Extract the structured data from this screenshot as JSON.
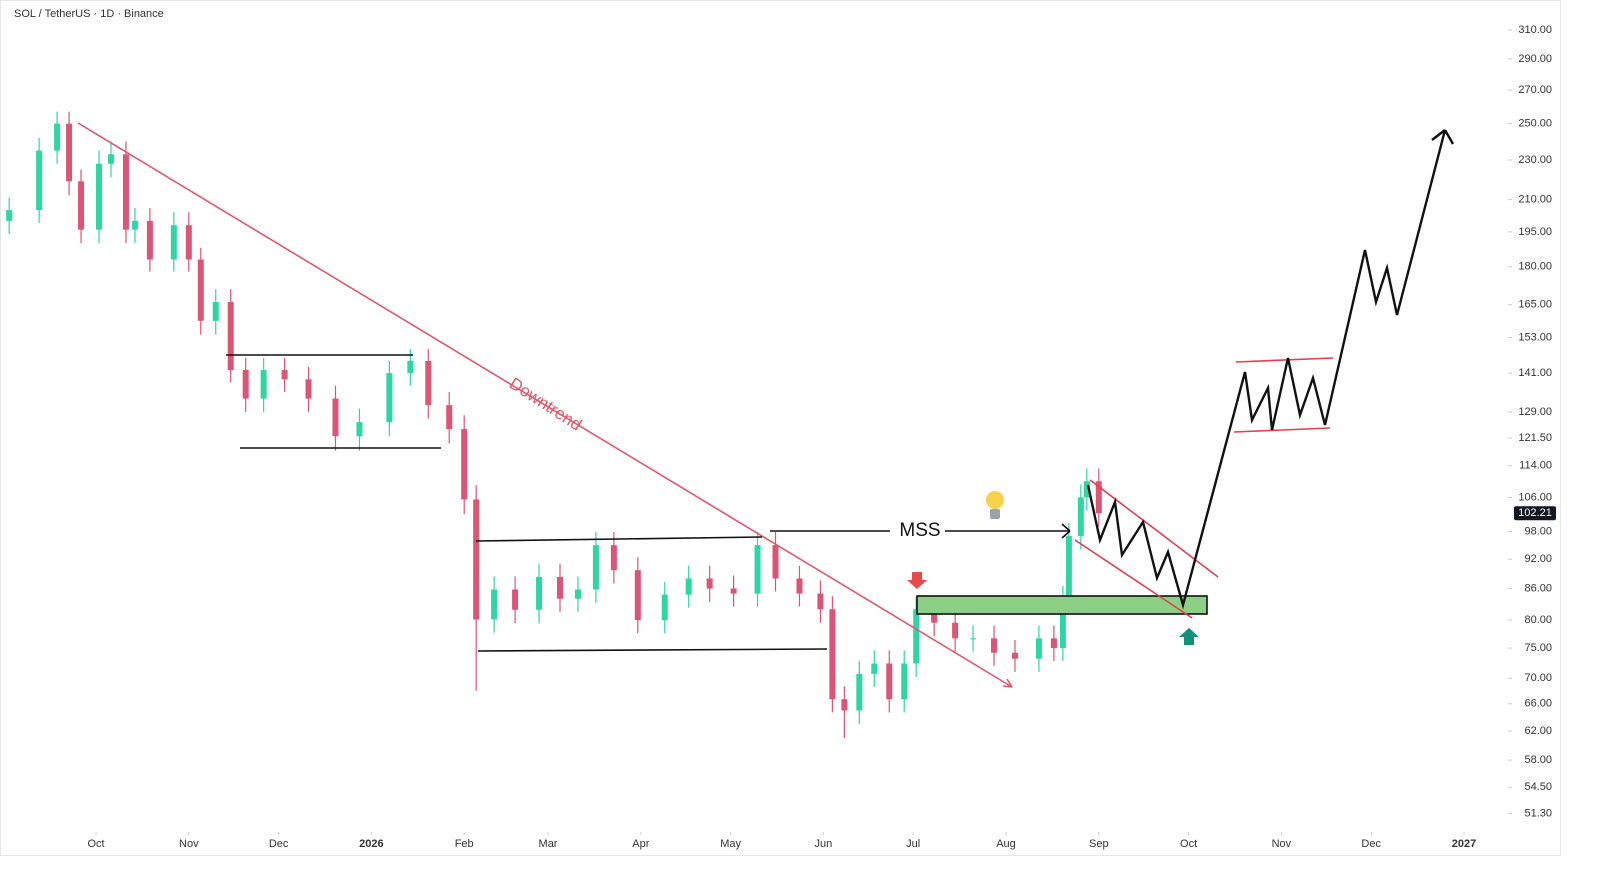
{
  "chart_data": {
    "type": "candlestick",
    "title": "SOL / TetherUS · 1D · Binance",
    "x": [
      -29,
      -19,
      -13,
      -9,
      -5,
      1,
      5,
      10,
      13,
      18,
      26,
      31,
      35,
      40,
      45,
      50,
      56,
      63,
      71,
      80,
      88,
      98,
      105,
      111,
      118,
      123,
      127,
      133,
      140,
      148,
      155,
      161,
      167,
      173,
      181,
      190,
      198,
      205,
      213,
      221,
      227,
      235,
      242,
      246,
      250,
      255,
      260,
      265,
      270,
      274,
      280,
      287,
      293,
      300,
      307,
      315,
      320,
      323,
      325,
      329,
      331,
      335
    ],
    "open": [
      200,
      205,
      235,
      250,
      219,
      196,
      228,
      233,
      196,
      200,
      183,
      198,
      183,
      159,
      166,
      142,
      133,
      142,
      139,
      133,
      122,
      126,
      141,
      145,
      131,
      124,
      105.5,
      80.1,
      85.8,
      81.9,
      88.3,
      84,
      85.8,
      95,
      89.7,
      80,
      84.8,
      88,
      86,
      85,
      95,
      88,
      85,
      82,
      66.7,
      65,
      70.7,
      72.4,
      66.7,
      72.4,
      82,
      79.5,
      76.7,
      76.7,
      74.2,
      73.2,
      76.7,
      75,
      84,
      97,
      106,
      110
    ],
    "high": [
      211,
      242,
      257,
      257,
      225,
      235,
      240,
      240,
      206,
      206,
      204,
      204,
      188,
      171,
      171,
      146,
      146,
      146,
      143,
      137,
      130,
      145,
      149,
      149,
      135,
      128,
      109,
      88.4,
      88.4,
      91,
      91,
      88.4,
      97.9,
      97.9,
      92.4,
      87.3,
      90.6,
      90.6,
      88.6,
      97.9,
      97.9,
      90.6,
      87.6,
      84.5,
      68.7,
      72.8,
      74.6,
      74.6,
      74.6,
      84.5,
      84.5,
      81.9,
      79,
      79,
      76.4,
      79,
      79,
      86.5,
      99.9,
      109.2,
      113.3,
      113.3
    ],
    "low": [
      194,
      199,
      228,
      212,
      190,
      190,
      221,
      190,
      190,
      178,
      178,
      178,
      154,
      154,
      138,
      129,
      129,
      135,
      129,
      118,
      118,
      122,
      137,
      127,
      120,
      102,
      68,
      77.7,
      79.4,
      79.4,
      81.5,
      81.5,
      83.2,
      87,
      77.6,
      77.6,
      82.3,
      83.4,
      82.5,
      82.5,
      85.4,
      82.5,
      79.5,
      64.7,
      61,
      63,
      68.6,
      64.7,
      64.7,
      70.2,
      77.1,
      74.4,
      74.4,
      72,
      71,
      71,
      72.8,
      72.8,
      81.5,
      94,
      102.8,
      99.1
    ],
    "close": [
      205,
      235,
      250,
      219,
      196,
      228,
      233,
      196,
      200,
      183,
      198,
      183,
      159,
      166,
      142,
      133,
      142,
      139,
      133,
      122,
      126,
      141,
      145,
      131,
      124,
      105.5,
      80.1,
      85.8,
      81.9,
      88.3,
      84,
      85.8,
      95,
      89.7,
      80,
      84.8,
      88,
      86,
      85,
      95,
      88,
      85,
      82,
      66.7,
      65,
      70.7,
      72.4,
      66.7,
      72.4,
      82,
      79.5,
      76.7,
      76.7,
      74.2,
      73.2,
      76.7,
      75,
      84,
      97,
      106,
      110,
      102.2
    ],
    "up_color": "#2ed6a4",
    "down_color": "#dc5476",
    "log_scale": true,
    "xlim": [
      -29.4,
      470.7
    ],
    "xticks": [
      {
        "value": 0,
        "label": "Oct"
      },
      {
        "value": 31,
        "label": "Nov"
      },
      {
        "value": 61,
        "label": "Dec"
      },
      {
        "value": 92,
        "label": "2026"
      },
      {
        "value": 123,
        "label": "Feb"
      },
      {
        "value": 151,
        "label": "Mar"
      },
      {
        "value": 182,
        "label": "Apr"
      },
      {
        "value": 212,
        "label": "May"
      },
      {
        "value": 243,
        "label": "Jun"
      },
      {
        "value": 273,
        "label": "Jul"
      },
      {
        "value": 304,
        "label": "Aug"
      },
      {
        "value": 335,
        "label": "Sep"
      },
      {
        "value": 365,
        "label": "Oct"
      },
      {
        "value": 396,
        "label": "Nov"
      },
      {
        "value": 426,
        "label": "Dec"
      },
      {
        "value": 457,
        "label": "2027"
      }
    ],
    "ylim": [
      49.4,
      326
    ],
    "yticks": [
      {
        "value": 310,
        "label": "310.00"
      },
      {
        "value": 290,
        "label": "290.00"
      },
      {
        "value": 270,
        "label": "270.00"
      },
      {
        "value": 250,
        "label": "250.00"
      },
      {
        "value": 230,
        "label": "230.00"
      },
      {
        "value": 210,
        "label": "210.00"
      },
      {
        "value": 195,
        "label": "195.00"
      },
      {
        "value": 180,
        "label": "180.00"
      },
      {
        "value": 165,
        "label": "165.00"
      },
      {
        "value": 153,
        "label": "153.00"
      },
      {
        "value": 141,
        "label": "141.00"
      },
      {
        "value": 129,
        "label": "129.00"
      },
      {
        "value": 121.5,
        "label": "121.50"
      },
      {
        "value": 114,
        "label": "114.00"
      },
      {
        "value": 106,
        "label": "106.00"
      },
      {
        "value": 98,
        "label": "98.00"
      },
      {
        "value": 92,
        "label": "92.00"
      },
      {
        "value": 86,
        "label": "86.00"
      },
      {
        "value": 80,
        "label": "80.00"
      },
      {
        "value": 75,
        "label": "75.00"
      },
      {
        "value": 70,
        "label": "70.00"
      },
      {
        "value": 66,
        "label": "66.00"
      },
      {
        "value": 62,
        "label": "62.00"
      },
      {
        "value": 58,
        "label": "58.00"
      },
      {
        "value": 54.5,
        "label": "54.50"
      },
      {
        "value": 51.3,
        "label": "51.30"
      }
    ],
    "last_price": 102.21,
    "annotations": {
      "downtrend": "Downtrend",
      "mss": "MSS"
    }
  }
}
